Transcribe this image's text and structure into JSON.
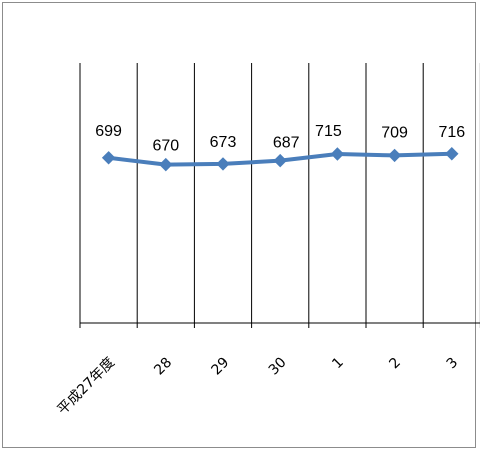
{
  "chart_data": {
    "type": "line",
    "categories": [
      "平成27年度",
      "28",
      "29",
      "30",
      "1",
      "2",
      "3"
    ],
    "series": [
      {
        "values": [
          699,
          670,
          673,
          687,
          715,
          709,
          716
        ]
      }
    ],
    "data_labels": [
      "699",
      "670",
      "673",
      "687",
      "715",
      "709",
      "716"
    ],
    "title": "",
    "xlabel": "",
    "ylabel": "",
    "ylim": [
      0,
      1100
    ],
    "grid": "vertical",
    "legend": "none",
    "colors": {
      "series": "#4a7ebb",
      "grid": "#000000",
      "axis": "#000000",
      "frame": "#8c8c8c"
    }
  }
}
